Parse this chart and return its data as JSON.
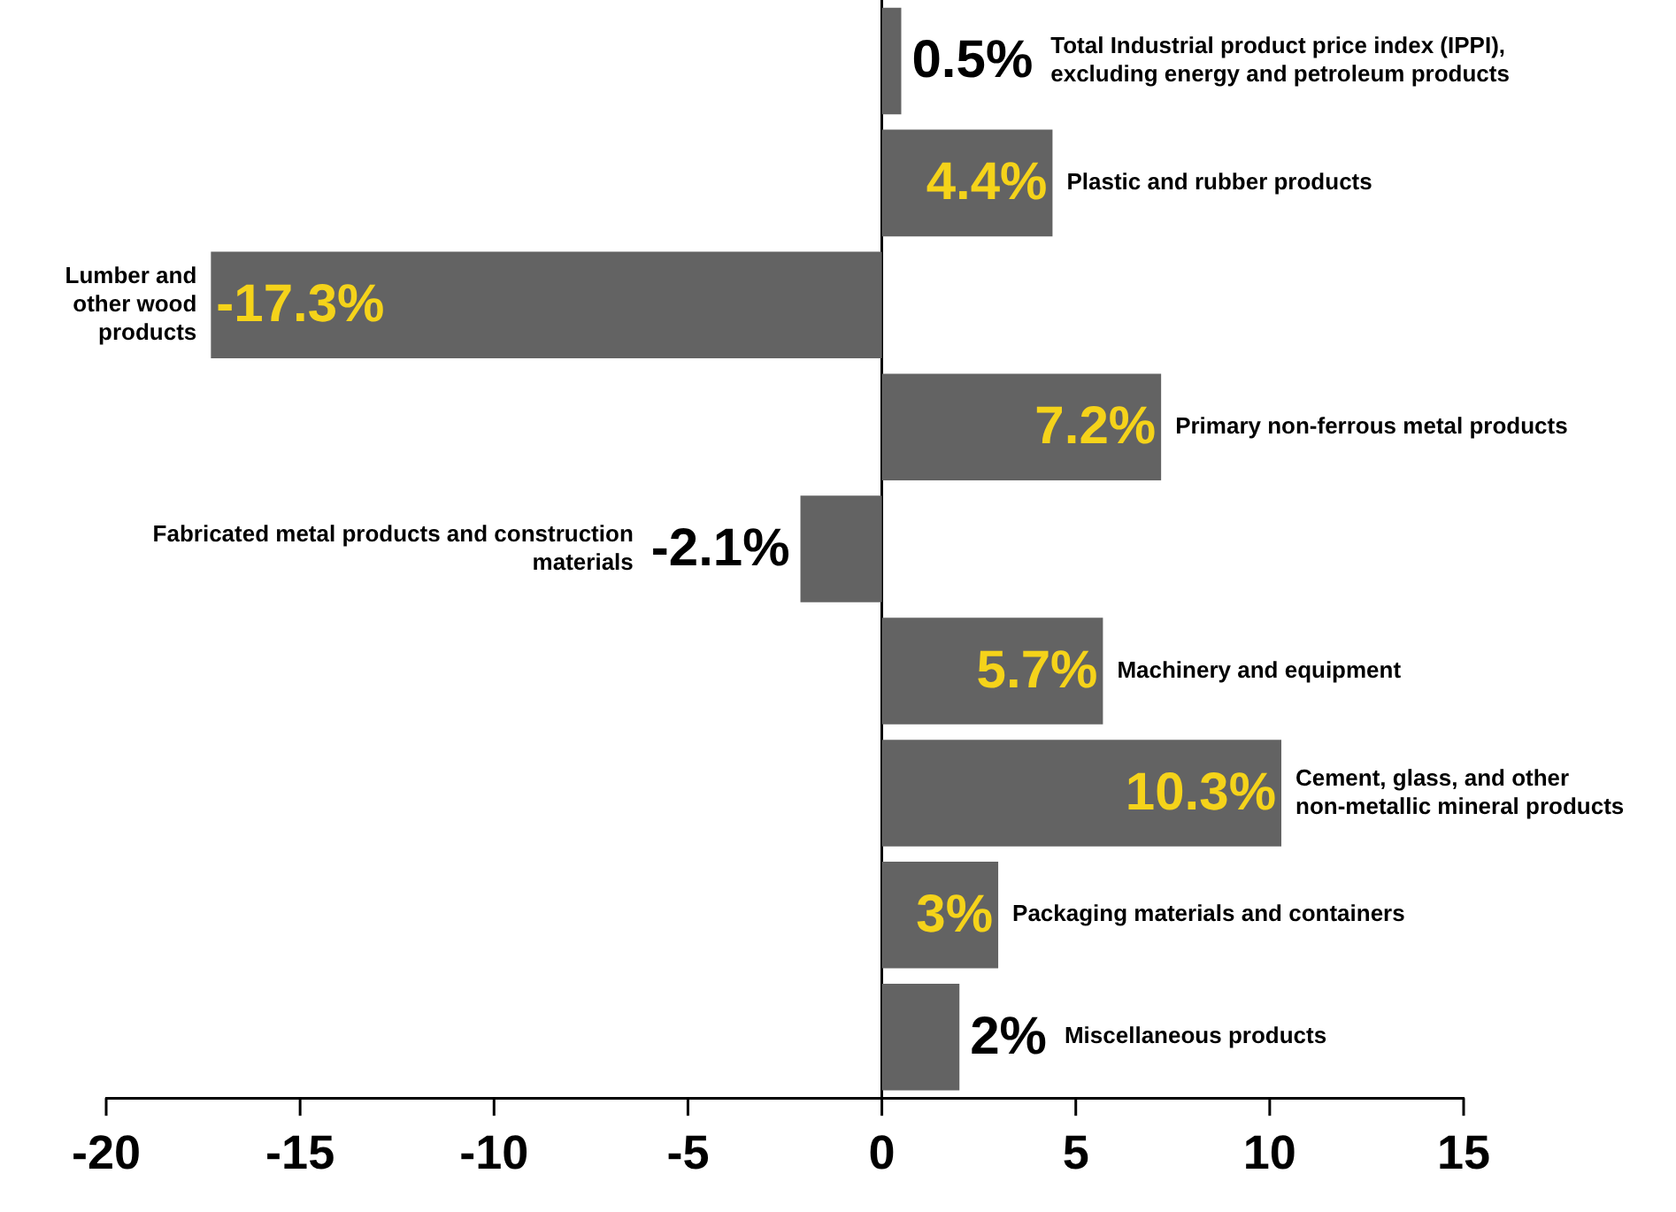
{
  "chart_data": {
    "type": "bar",
    "orientation": "horizontal",
    "categories": [
      "Total Industrial product price index (IPPI), excluding energy and petroleum products",
      "Plastic and rubber products",
      "Lumber and other wood products",
      "Primary non-ferrous metal products",
      "Fabricated metal products and construction materials",
      "Machinery and equipment",
      "Cement, glass, and other non-metallic mineral products",
      "Packaging materials and containers",
      "Miscellaneous products"
    ],
    "values": [
      0.5,
      4.4,
      -17.3,
      7.2,
      -2.1,
      5.7,
      10.3,
      3,
      2
    ],
    "value_labels": [
      "0.5%",
      "4.4%",
      "-17.3%",
      "7.2%",
      "-2.1%",
      "5.7%",
      "10.3%",
      "3%",
      "2%"
    ],
    "color": "#636363",
    "xlim": [
      -20,
      15
    ],
    "xticks": [
      -20,
      -15,
      -10,
      -5,
      0,
      5,
      10,
      15
    ],
    "legend": false
  }
}
